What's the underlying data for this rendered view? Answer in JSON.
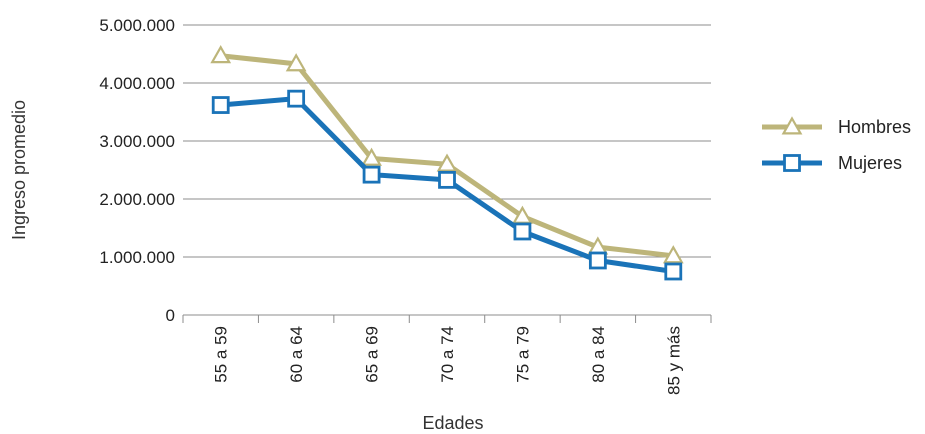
{
  "chart_data": {
    "type": "line",
    "title": "",
    "xlabel": "Edades",
    "ylabel": "Ingreso promedio",
    "categories": [
      "55 a 59",
      "60 a 64",
      "65 a 69",
      "70 a 74",
      "75 a 79",
      "80 a 84",
      "85 y más"
    ],
    "ylim": [
      0,
      5000000
    ],
    "yticks": [
      0,
      1000000,
      2000000,
      3000000,
      4000000,
      5000000
    ],
    "ytick_labels": [
      "0",
      "1.000.000",
      "2.000.000",
      "3.000.000",
      "4.000.000",
      "5.000.000"
    ],
    "grid": true,
    "legend_position": "right",
    "series": [
      {
        "name": "Hombres",
        "marker": "triangle",
        "color": "#bdb57a",
        "values": [
          4470000,
          4330000,
          2700000,
          2600000,
          1700000,
          1170000,
          1020000
        ]
      },
      {
        "name": "Mujeres",
        "marker": "square",
        "color": "#1a73b8",
        "values": [
          3620000,
          3730000,
          2420000,
          2330000,
          1440000,
          940000,
          750000
        ]
      }
    ]
  }
}
